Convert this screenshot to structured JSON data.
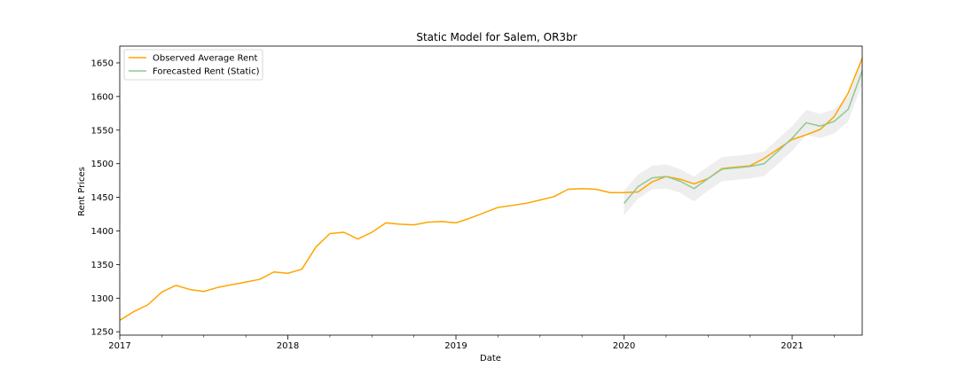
{
  "chart_data": {
    "type": "line",
    "title": "Static Model for Salem, OR3br",
    "xlabel": "Date",
    "ylabel": "Rent Prices",
    "xlim": [
      "2017-01",
      "2021-06"
    ],
    "ylim": [
      1245,
      1675
    ],
    "x_ticks": [
      "2017",
      "2018",
      "2019",
      "2020",
      "2021"
    ],
    "y_ticks": [
      1250,
      1300,
      1350,
      1400,
      1450,
      1500,
      1550,
      1600,
      1650
    ],
    "grid": false,
    "legend_position": "upper-left",
    "series": [
      {
        "name": "Observed Average Rent",
        "color": "#ffa500",
        "x": [
          "2017-01",
          "2017-02",
          "2017-03",
          "2017-04",
          "2017-05",
          "2017-06",
          "2017-07",
          "2017-08",
          "2017-09",
          "2017-10",
          "2017-11",
          "2017-12",
          "2018-01",
          "2018-02",
          "2018-03",
          "2018-04",
          "2018-05",
          "2018-06",
          "2018-07",
          "2018-08",
          "2018-09",
          "2018-10",
          "2018-11",
          "2018-12",
          "2019-01",
          "2019-02",
          "2019-03",
          "2019-04",
          "2019-05",
          "2019-06",
          "2019-07",
          "2019-08",
          "2019-09",
          "2019-10",
          "2019-11",
          "2019-12",
          "2020-01",
          "2020-02",
          "2020-03",
          "2020-04",
          "2020-05",
          "2020-06",
          "2020-07",
          "2020-08",
          "2020-09",
          "2020-10",
          "2020-11",
          "2020-12",
          "2021-01",
          "2021-02",
          "2021-03",
          "2021-04",
          "2021-05",
          "2021-06"
        ],
        "values": [
          1267,
          1280,
          1290,
          1309,
          1319,
          1313,
          1310,
          1316,
          1320,
          1324,
          1328,
          1339,
          1337,
          1343,
          1376,
          1396,
          1398,
          1388,
          1398,
          1412,
          1410,
          1409,
          1413,
          1414,
          1412,
          1419,
          1427,
          1435,
          1438,
          1441,
          1446,
          1451,
          1462,
          1463,
          1462,
          1457,
          1457,
          1458,
          1473,
          1481,
          1477,
          1470,
          1478,
          1493,
          1495,
          1497,
          1508,
          1522,
          1536,
          1543,
          1551,
          1570,
          1605,
          1657
        ]
      },
      {
        "name": "Forecasted Rent (Static)",
        "color": "#8fc88f",
        "x": [
          "2020-01",
          "2020-02",
          "2020-03",
          "2020-04",
          "2020-05",
          "2020-06",
          "2020-07",
          "2020-08",
          "2020-09",
          "2020-10",
          "2020-11",
          "2020-12",
          "2021-01",
          "2021-02",
          "2021-03",
          "2021-04",
          "2021-05",
          "2021-06"
        ],
        "values": [
          1441,
          1466,
          1479,
          1481,
          1474,
          1463,
          1478,
          1492,
          1494,
          1496,
          1500,
          1519,
          1538,
          1561,
          1556,
          1563,
          1581,
          1638
        ],
        "ci_lower": [
          1423,
          1448,
          1462,
          1463,
          1457,
          1444,
          1460,
          1474,
          1476,
          1478,
          1482,
          1500,
          1519,
          1543,
          1538,
          1545,
          1563,
          1619
        ],
        "ci_upper": [
          1460,
          1484,
          1497,
          1499,
          1492,
          1481,
          1496,
          1510,
          1512,
          1514,
          1518,
          1537,
          1556,
          1580,
          1574,
          1581,
          1600,
          1656
        ]
      }
    ]
  }
}
